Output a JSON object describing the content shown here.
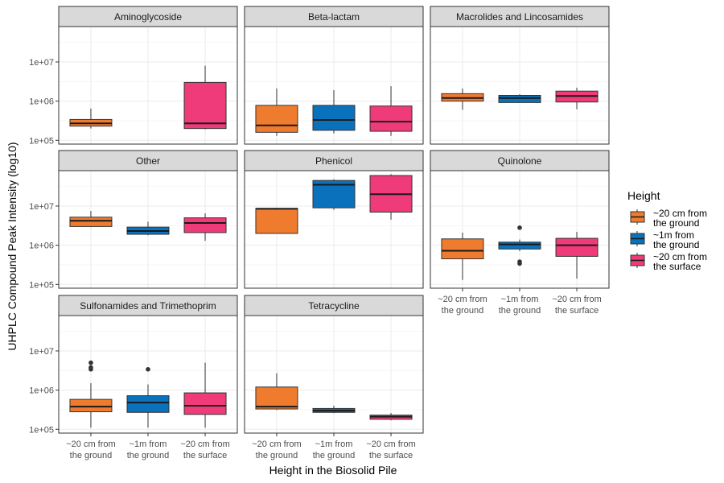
{
  "chart_data": {
    "type": "boxplot",
    "xlabel": "Height in the Biosolid Pile",
    "ylabel": "UHPLC Compound Peak Intensity (log10)",
    "yscale": "log10",
    "ylim": [
      80000,
      80000000
    ],
    "y_ticks": [
      100000,
      1000000,
      10000000
    ],
    "y_tick_labels": [
      "1e+05",
      "1e+06",
      "1e+07"
    ],
    "categories": [
      [
        "~20 cm from",
        "the ground"
      ],
      [
        "~1m from",
        "the ground"
      ],
      [
        "~20 cm from",
        "the surface"
      ]
    ],
    "legend": {
      "title": "Height",
      "position": "right",
      "entries": [
        {
          "label": [
            "~20 cm from",
            "the ground"
          ],
          "color": "#EF7B2F"
        },
        {
          "label": [
            "~1m from",
            "the ground"
          ],
          "color": "#0A72BC"
        },
        {
          "label": [
            "~20 cm from",
            "the surface"
          ],
          "color": "#EF3B79"
        }
      ]
    },
    "grid": true,
    "panels": [
      {
        "name": "Aminoglycoside",
        "boxes": [
          {
            "cat": 0,
            "wl": 200000,
            "q1": 230000,
            "med": 270000,
            "q3": 340000,
            "wh": 650000,
            "out": []
          },
          {
            "cat": 2,
            "wl": 190000,
            "q1": 200000,
            "med": 270000,
            "q3": 3000000,
            "wh": 8000000,
            "out": []
          }
        ]
      },
      {
        "name": "Beta-lactam",
        "boxes": [
          {
            "cat": 0,
            "wl": 130000,
            "q1": 160000,
            "med": 240000,
            "q3": 780000,
            "wh": 2100000,
            "out": []
          },
          {
            "cat": 1,
            "wl": 150000,
            "q1": 180000,
            "med": 330000,
            "q3": 780000,
            "wh": 1900000,
            "out": []
          },
          {
            "cat": 2,
            "wl": 130000,
            "q1": 170000,
            "med": 300000,
            "q3": 750000,
            "wh": 2400000,
            "out": []
          }
        ]
      },
      {
        "name": "Macrolides and Lincosamides",
        "boxes": [
          {
            "cat": 0,
            "wl": 600000,
            "q1": 1000000,
            "med": 1200000,
            "q3": 1550000,
            "wh": 2100000,
            "out": []
          },
          {
            "cat": 1,
            "wl": 900000,
            "q1": 920000,
            "med": 1200000,
            "q3": 1400000,
            "wh": 1500000,
            "out": []
          },
          {
            "cat": 2,
            "wl": 620000,
            "q1": 950000,
            "med": 1350000,
            "q3": 1800000,
            "wh": 2200000,
            "out": []
          }
        ]
      },
      {
        "name": "Other",
        "boxes": [
          {
            "cat": 0,
            "wl": 2900000,
            "q1": 3000000,
            "med": 4200000,
            "q3": 5200000,
            "wh": 7500000,
            "out": []
          },
          {
            "cat": 1,
            "wl": 1800000,
            "q1": 1900000,
            "med": 2300000,
            "q3": 2900000,
            "wh": 4000000,
            "out": []
          },
          {
            "cat": 2,
            "wl": 1300000,
            "q1": 2100000,
            "med": 3700000,
            "q3": 5000000,
            "wh": 6500000,
            "out": []
          }
        ]
      },
      {
        "name": "Phenicol",
        "boxes": [
          {
            "cat": 0,
            "wl": 2000000,
            "q1": 2000000,
            "med": 8500000,
            "q3": 8700000,
            "wh": 9000000,
            "out": []
          },
          {
            "cat": 1,
            "wl": 8000000,
            "q1": 9000000,
            "med": 35000000,
            "q3": 45000000,
            "wh": 48000000,
            "out": []
          },
          {
            "cat": 2,
            "wl": 4500000,
            "q1": 7000000,
            "med": 20000000,
            "q3": 60000000,
            "wh": 65000000,
            "out": []
          }
        ]
      },
      {
        "name": "Quinolone",
        "boxes": [
          {
            "cat": 0,
            "wl": 130000,
            "q1": 450000,
            "med": 720000,
            "q3": 1450000,
            "wh": 2100000,
            "out": []
          },
          {
            "cat": 1,
            "wl": 700000,
            "q1": 800000,
            "med": 1050000,
            "q3": 1200000,
            "wh": 1400000,
            "out": [
              2800000,
              380000,
              340000
            ]
          },
          {
            "cat": 2,
            "wl": 140000,
            "q1": 520000,
            "med": 1000000,
            "q3": 1500000,
            "wh": 2200000,
            "out": []
          }
        ]
      },
      {
        "name": "Sulfonamides and Trimethoprim",
        "boxes": [
          {
            "cat": 0,
            "wl": 110000,
            "q1": 280000,
            "med": 380000,
            "q3": 580000,
            "wh": 1500000,
            "out": [
              5000000,
              3800000,
              3400000
            ]
          },
          {
            "cat": 1,
            "wl": 110000,
            "q1": 270000,
            "med": 480000,
            "q3": 720000,
            "wh": 1400000,
            "out": [
              3400000
            ]
          },
          {
            "cat": 2,
            "wl": 110000,
            "q1": 240000,
            "med": 400000,
            "q3": 850000,
            "wh": 5000000,
            "out": []
          }
        ]
      },
      {
        "name": "Tetracycline",
        "boxes": [
          {
            "cat": 0,
            "wl": 310000,
            "q1": 330000,
            "med": 380000,
            "q3": 1200000,
            "wh": 2700000,
            "out": []
          },
          {
            "cat": 1,
            "wl": 260000,
            "q1": 270000,
            "med": 300000,
            "q3": 340000,
            "wh": 400000,
            "out": []
          },
          {
            "cat": 2,
            "wl": 170000,
            "q1": 180000,
            "med": 210000,
            "q3": 230000,
            "wh": 260000,
            "out": []
          }
        ]
      }
    ]
  }
}
